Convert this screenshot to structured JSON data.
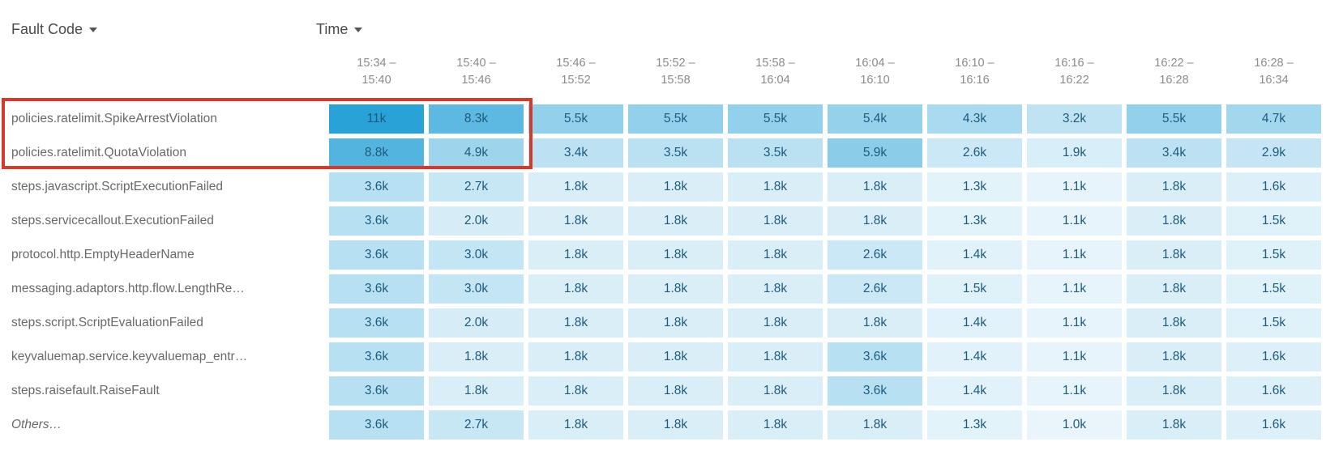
{
  "header": {
    "fault_code_label": "Fault Code",
    "time_label": "Time"
  },
  "highlight": {
    "color": "#d23b2c"
  },
  "chart_data": {
    "type": "heatmap",
    "x_axis_label": "Time",
    "y_axis_label": "Fault Code",
    "legend": "none",
    "columns": [
      {
        "line1": "15:34 –",
        "line2": "15:40"
      },
      {
        "line1": "15:40 –",
        "line2": "15:46"
      },
      {
        "line1": "15:46 –",
        "line2": "15:52"
      },
      {
        "line1": "15:52 –",
        "line2": "15:58"
      },
      {
        "line1": "15:58 –",
        "line2": "16:04"
      },
      {
        "line1": "16:04 –",
        "line2": "16:10"
      },
      {
        "line1": "16:10 –",
        "line2": "16:16"
      },
      {
        "line1": "16:16 –",
        "line2": "16:22"
      },
      {
        "line1": "16:22 –",
        "line2": "16:28"
      },
      {
        "line1": "16:28 –",
        "line2": "16:34"
      }
    ],
    "rows": [
      {
        "label": "policies.ratelimit.SpikeArrestViolation",
        "italic": false
      },
      {
        "label": "policies.ratelimit.QuotaViolation",
        "italic": false
      },
      {
        "label": "steps.javascript.ScriptExecutionFailed",
        "italic": false
      },
      {
        "label": "steps.servicecallout.ExecutionFailed",
        "italic": false
      },
      {
        "label": "protocol.http.EmptyHeaderName",
        "italic": false
      },
      {
        "label": "messaging.adaptors.http.flow.LengthRe…",
        "italic": false
      },
      {
        "label": "steps.script.ScriptEvaluationFailed",
        "italic": false
      },
      {
        "label": "keyvaluemap.service.keyvaluemap_entr…",
        "italic": false
      },
      {
        "label": "steps.raisefault.RaiseFault",
        "italic": false
      },
      {
        "label": "Others…",
        "italic": true
      }
    ],
    "cell_labels": [
      [
        "11k",
        "8.3k",
        "5.5k",
        "5.5k",
        "5.5k",
        "5.4k",
        "4.3k",
        "3.2k",
        "5.5k",
        "4.7k"
      ],
      [
        "8.8k",
        "4.9k",
        "3.4k",
        "3.5k",
        "3.5k",
        "5.9k",
        "2.6k",
        "1.9k",
        "3.4k",
        "2.9k"
      ],
      [
        "3.6k",
        "2.7k",
        "1.8k",
        "1.8k",
        "1.8k",
        "1.8k",
        "1.3k",
        "1.1k",
        "1.8k",
        "1.6k"
      ],
      [
        "3.6k",
        "2.0k",
        "1.8k",
        "1.8k",
        "1.8k",
        "1.8k",
        "1.3k",
        "1.1k",
        "1.8k",
        "1.5k"
      ],
      [
        "3.6k",
        "3.0k",
        "1.8k",
        "1.8k",
        "1.8k",
        "2.6k",
        "1.4k",
        "1.1k",
        "1.8k",
        "1.5k"
      ],
      [
        "3.6k",
        "3.0k",
        "1.8k",
        "1.8k",
        "1.8k",
        "2.6k",
        "1.5k",
        "1.1k",
        "1.8k",
        "1.5k"
      ],
      [
        "3.6k",
        "2.0k",
        "1.8k",
        "1.8k",
        "1.8k",
        "1.8k",
        "1.4k",
        "1.1k",
        "1.8k",
        "1.5k"
      ],
      [
        "3.6k",
        "1.8k",
        "1.8k",
        "1.8k",
        "1.8k",
        "3.6k",
        "1.4k",
        "1.1k",
        "1.8k",
        "1.6k"
      ],
      [
        "3.6k",
        "1.8k",
        "1.8k",
        "1.8k",
        "1.8k",
        "3.6k",
        "1.4k",
        "1.1k",
        "1.8k",
        "1.6k"
      ],
      [
        "3.6k",
        "2.7k",
        "1.8k",
        "1.8k",
        "1.8k",
        "1.8k",
        "1.3k",
        "1.0k",
        "1.8k",
        "1.6k"
      ]
    ],
    "values_thousands": [
      [
        11,
        8.3,
        5.5,
        5.5,
        5.5,
        5.4,
        4.3,
        3.2,
        5.5,
        4.7
      ],
      [
        8.8,
        4.9,
        3.4,
        3.5,
        3.5,
        5.9,
        2.6,
        1.9,
        3.4,
        2.9
      ],
      [
        3.6,
        2.7,
        1.8,
        1.8,
        1.8,
        1.8,
        1.3,
        1.1,
        1.8,
        1.6
      ],
      [
        3.6,
        2.0,
        1.8,
        1.8,
        1.8,
        1.8,
        1.3,
        1.1,
        1.8,
        1.5
      ],
      [
        3.6,
        3.0,
        1.8,
        1.8,
        1.8,
        2.6,
        1.4,
        1.1,
        1.8,
        1.5
      ],
      [
        3.6,
        3.0,
        1.8,
        1.8,
        1.8,
        2.6,
        1.5,
        1.1,
        1.8,
        1.5
      ],
      [
        3.6,
        2.0,
        1.8,
        1.8,
        1.8,
        1.8,
        1.4,
        1.1,
        1.8,
        1.5
      ],
      [
        3.6,
        1.8,
        1.8,
        1.8,
        1.8,
        3.6,
        1.4,
        1.1,
        1.8,
        1.6
      ],
      [
        3.6,
        1.8,
        1.8,
        1.8,
        1.8,
        3.6,
        1.4,
        1.1,
        1.8,
        1.6
      ],
      [
        3.6,
        2.7,
        1.8,
        1.8,
        1.8,
        1.8,
        1.3,
        1.0,
        1.8,
        1.6
      ]
    ],
    "value_range": [
      1.0,
      11.0
    ],
    "color_scale": {
      "min_color": "#e9f5fb",
      "max_color": "#29a3d7",
      "cell_text_color": "#1d5a7d"
    }
  }
}
